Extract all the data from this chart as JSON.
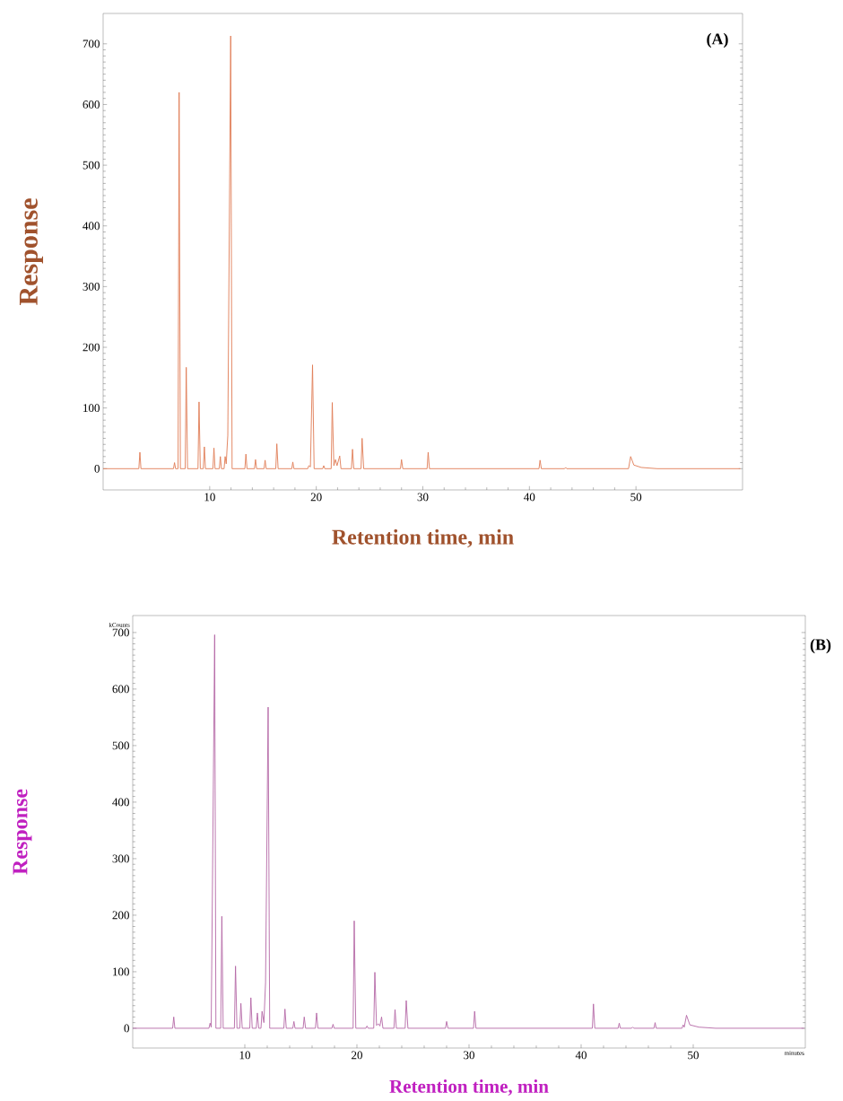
{
  "chart_data": [
    {
      "type": "line",
      "title": "(A)",
      "xlabel": "Retention time, min",
      "ylabel": "Response",
      "xlim": [
        0,
        60
      ],
      "ylim": [
        -35,
        750
      ],
      "xticks": [
        10,
        20,
        30,
        40,
        50
      ],
      "yticks": [
        0,
        100,
        200,
        300,
        400,
        500,
        600,
        700
      ],
      "series": [
        {
          "color": "#e07c55",
          "x": [
            0,
            3.35,
            3.45,
            3.55,
            6.6,
            6.7,
            6.8,
            7.03,
            7.13,
            7.25,
            7.7,
            7.8,
            7.92,
            8.9,
            9.0,
            9.12,
            9.4,
            9.5,
            9.6,
            10.3,
            10.4,
            10.5,
            10.9,
            11.0,
            11.1,
            11.35,
            11.45,
            11.55,
            11.7,
            11.97,
            12.1,
            13.3,
            13.4,
            13.5,
            14.2,
            14.3,
            14.4,
            15.1,
            15.2,
            15.3,
            16.2,
            16.3,
            16.42,
            17.7,
            17.8,
            17.9,
            19.2,
            19.3,
            19.45,
            19.65,
            19.8,
            20.6,
            20.7,
            20.8,
            21.4,
            21.5,
            21.65,
            21.8,
            21.95,
            22.2,
            22.32,
            23.3,
            23.4,
            23.52,
            24.2,
            24.3,
            24.45,
            27.9,
            28.0,
            28.12,
            30.4,
            30.5,
            30.62,
            40.9,
            41.0,
            41.12,
            43.3,
            43.4,
            43.5,
            49.3,
            49.5,
            49.8,
            50.5,
            52,
            59.8
          ],
          "values": [
            0,
            0,
            27,
            0,
            0,
            10,
            0,
            0,
            620,
            0,
            0,
            167,
            0,
            0,
            110,
            0,
            0,
            36,
            0,
            0,
            34,
            0,
            0,
            20,
            0,
            0,
            20,
            8,
            55,
            713,
            0,
            0,
            24,
            0,
            0,
            15,
            0,
            0,
            14,
            0,
            0,
            41,
            0,
            0,
            11,
            0,
            0,
            5,
            3,
            171,
            0,
            0,
            5,
            0,
            0,
            109,
            5,
            15,
            5,
            21,
            0,
            0,
            32,
            0,
            0,
            50,
            0,
            0,
            15,
            0,
            0,
            27,
            0,
            0,
            14,
            0,
            0,
            2,
            0,
            0,
            20,
            6,
            2,
            0,
            0
          ]
        }
      ]
    },
    {
      "type": "line",
      "title": "(B)",
      "xlabel": "Retention time, min",
      "ylabel": "Response",
      "annotations": [
        "kCounts",
        "minutes"
      ],
      "xlim": [
        0,
        60
      ],
      "ylim": [
        -35,
        730
      ],
      "xticks": [
        10,
        20,
        30,
        40,
        50
      ],
      "yticks": [
        0,
        100,
        200,
        300,
        400,
        500,
        600,
        700
      ],
      "series": [
        {
          "color": "#b468a6",
          "x": [
            0,
            3.56,
            3.66,
            3.76,
            6.8,
            6.9,
            7.0,
            7.31,
            7.42,
            7.85,
            7.95,
            8.07,
            9.07,
            9.17,
            9.3,
            9.55,
            9.65,
            9.77,
            10.44,
            10.54,
            10.66,
            11.02,
            11.12,
            11.24,
            11.44,
            11.54,
            11.7,
            11.85,
            12.08,
            12.22,
            13.48,
            13.58,
            13.7,
            14.28,
            14.38,
            14.48,
            15.2,
            15.3,
            15.42,
            16.3,
            16.4,
            16.52,
            17.77,
            17.87,
            17.97,
            19.66,
            19.76,
            19.9,
            20.8,
            20.9,
            21.0,
            21.5,
            21.6,
            21.75,
            21.9,
            22.05,
            22.2,
            22.32,
            23.3,
            23.4,
            23.52,
            24.3,
            24.4,
            24.55,
            27.9,
            28.0,
            28.12,
            30.4,
            30.5,
            30.62,
            41.0,
            41.1,
            41.22,
            43.3,
            43.4,
            43.5,
            44.5,
            44.6,
            44.7,
            46.5,
            46.6,
            46.7,
            49.0,
            49.1,
            49.2,
            49.4,
            49.7,
            50.5,
            52,
            59.9
          ],
          "values": [
            0,
            0,
            20,
            0,
            0,
            9,
            2,
            696,
            0,
            0,
            198,
            0,
            0,
            110,
            0,
            0,
            44,
            0,
            0,
            54,
            0,
            0,
            27,
            0,
            0,
            30,
            10,
            81,
            568,
            0,
            0,
            34,
            0,
            0,
            12,
            0,
            0,
            20,
            0,
            0,
            27,
            0,
            0,
            7,
            0,
            0,
            190,
            0,
            0,
            4,
            0,
            0,
            99,
            5,
            8,
            4,
            20,
            0,
            0,
            33,
            0,
            0,
            49,
            0,
            0,
            12,
            0,
            0,
            30,
            0,
            0,
            43,
            0,
            0,
            9,
            0,
            0,
            2,
            0,
            0,
            10,
            0,
            0,
            6,
            2,
            23,
            6,
            2,
            0,
            0
          ]
        }
      ]
    }
  ]
}
